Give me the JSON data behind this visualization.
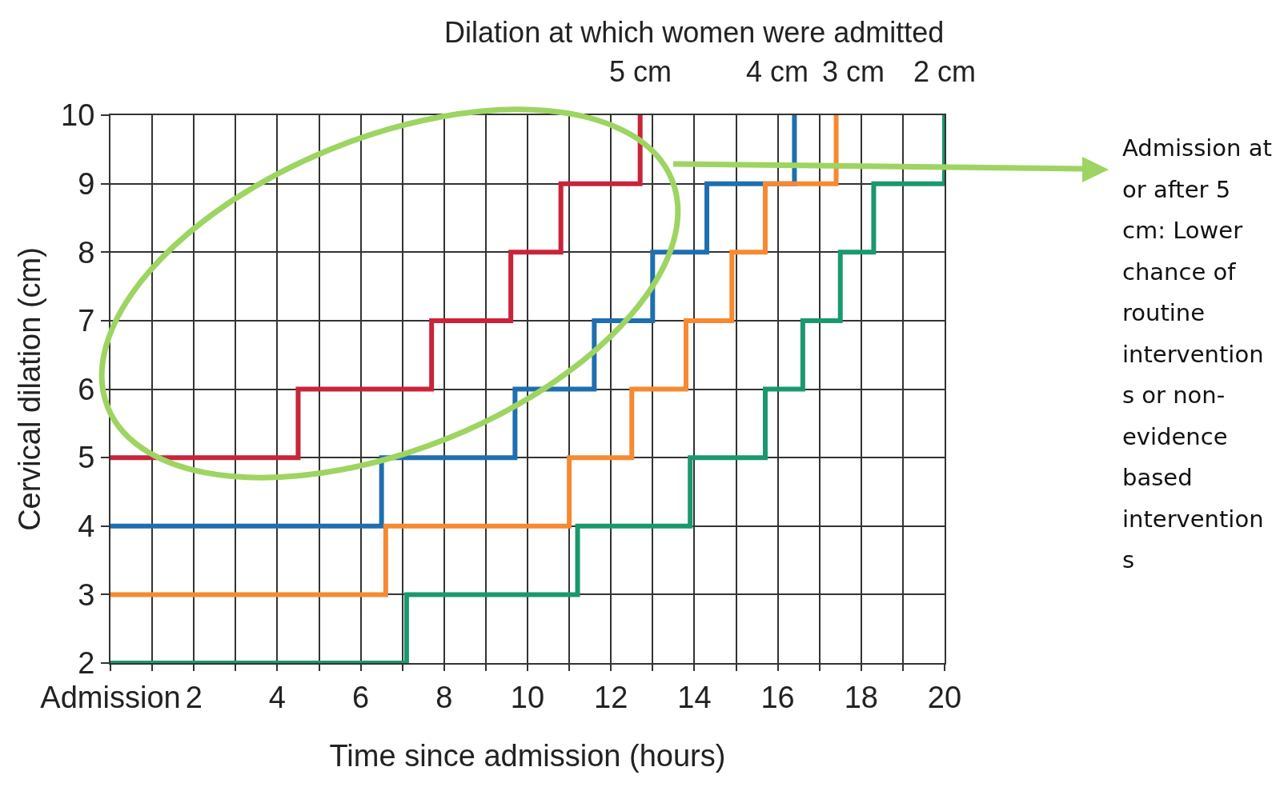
{
  "chart_data": {
    "type": "step",
    "title": "Dilation at which women were admitted",
    "xlabel": "Time since admission (hours)",
    "ylabel": "Cervical dilation (cm)",
    "series": [
      {
        "name": "5 cm",
        "color": "#c8243a",
        "x": [
          0,
          4.5,
          7.7,
          9.6,
          10.8,
          12.7,
          12.7
        ],
        "values": [
          5,
          6,
          7,
          8,
          9,
          10,
          10
        ]
      },
      {
        "name": "4 cm",
        "color": "#1f6fb0",
        "x": [
          0,
          6.5,
          9.7,
          11.6,
          13,
          14.3,
          16.4,
          16.4
        ],
        "values": [
          4,
          5,
          6,
          7,
          8,
          9,
          10,
          10
        ]
      },
      {
        "name": "3 cm",
        "color": "#f58a33",
        "x": [
          0,
          6.6,
          11,
          12.5,
          13.8,
          14.9,
          15.7,
          17.4,
          17.4
        ],
        "values": [
          3,
          4,
          5,
          6,
          7,
          8,
          9,
          10,
          10
        ]
      },
      {
        "name": "2 cm",
        "color": "#1a9870",
        "x": [
          0,
          7.1,
          11.2,
          13.9,
          15.7,
          16.6,
          17.5,
          18.3,
          20,
          20
        ],
        "values": [
          2,
          3,
          4,
          5,
          6,
          7,
          8,
          9,
          10,
          10
        ]
      }
    ],
    "xlim": [
      0,
      20
    ],
    "xticks": [
      {
        "value": 0,
        "label": "Admission"
      },
      {
        "value": 1,
        "label": null
      },
      2,
      {
        "value": 3,
        "label": null
      },
      4,
      {
        "value": 5,
        "label": null
      },
      6,
      {
        "value": 7,
        "label": null
      },
      8,
      {
        "value": 9,
        "label": null
      },
      10,
      {
        "value": 11,
        "label": null
      },
      12,
      {
        "value": 13,
        "label": null
      },
      14,
      {
        "value": 15,
        "label": null
      },
      16,
      {
        "value": 17,
        "label": null
      },
      18,
      {
        "value": 19,
        "label": null
      },
      20
    ],
    "ylim": [
      2,
      10
    ],
    "yticks": [
      2,
      3,
      4,
      5,
      6,
      7,
      8,
      9,
      10
    ],
    "grid": true,
    "legend": false,
    "annotations": [
      "Admission at or after 5 cm: Lower chance of routine interventions or non-evidence based interventions"
    ]
  }
}
